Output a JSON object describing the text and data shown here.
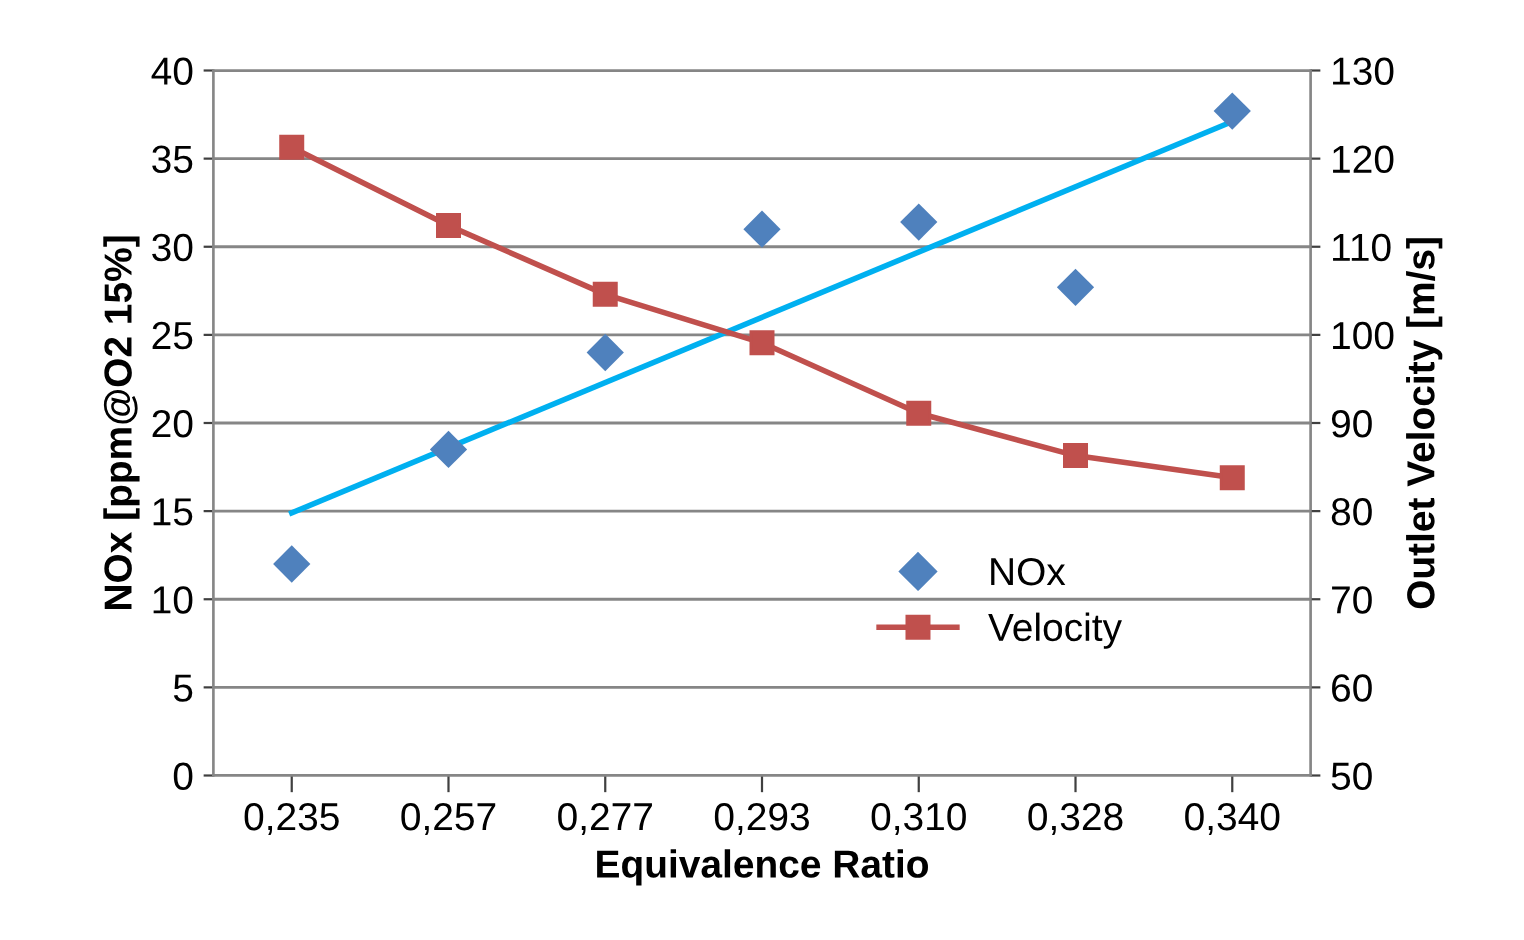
{
  "chart_data": {
    "type": "scatter",
    "xlabel": "Equivalence Ratio",
    "ylabel": "NOx [ppm@O2 15%]",
    "y2label": "Outlet Velocity [m/s]",
    "categories": [
      "0,235",
      "0,257",
      "0,277",
      "0,293",
      "0,310",
      "0,328",
      "0,340"
    ],
    "series": [
      {
        "name": "NOx",
        "color": "#4f81bd",
        "marker": "diamond",
        "values": [
          12.0,
          18.5,
          24.0,
          31.0,
          31.4,
          27.7,
          37.7
        ]
      },
      {
        "name": "Velocity",
        "type": "line",
        "axis": "y2",
        "color": "#c0504d",
        "marker": "square",
        "values": [
          121.3,
          112.4,
          104.6,
          99.1,
          91.1,
          86.3,
          83.8
        ]
      },
      {
        "type": "line",
        "color": "#00b0f0",
        "marker": "none",
        "x": [
          "0,235",
          "0,340"
        ],
        "values": [
          14.9,
          37.1
        ]
      }
    ],
    "ylim": [
      0,
      40
    ],
    "yticks": [
      0,
      5,
      10,
      15,
      20,
      25,
      30,
      35,
      40
    ],
    "y2lim": [
      50,
      130
    ],
    "y2ticks": [
      50,
      60,
      70,
      80,
      90,
      100,
      110,
      120,
      130
    ],
    "grid": "y",
    "legend": "bottom right"
  }
}
